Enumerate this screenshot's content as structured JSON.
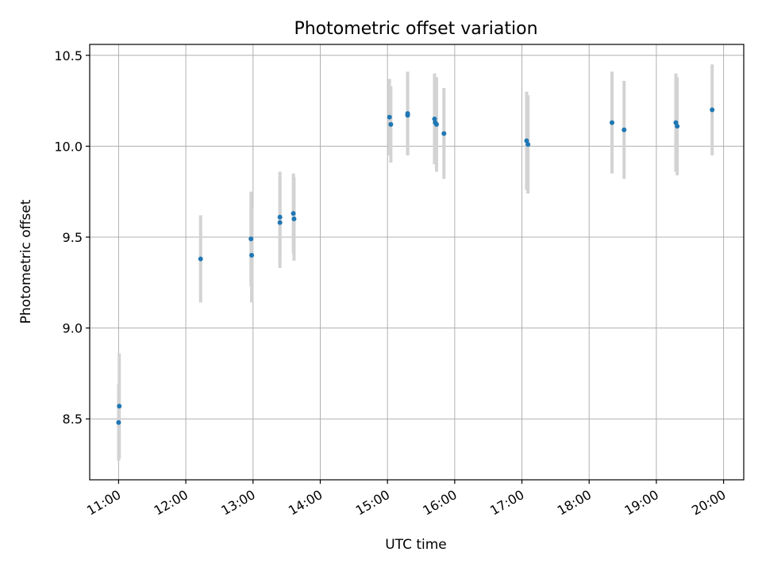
{
  "chart_data": {
    "type": "scatter",
    "title": "Photometric offset variation",
    "xlabel": "UTC time",
    "ylabel": "Photometric offset",
    "x_unit": "hours UTC",
    "xlim": [
      10.57,
      20.3
    ],
    "ylim": [
      8.165,
      10.56
    ],
    "x_ticks": [
      11,
      12,
      13,
      14,
      15,
      16,
      17,
      18,
      19,
      20
    ],
    "x_tick_labels": [
      "11:00",
      "12:00",
      "13:00",
      "14:00",
      "15:00",
      "16:00",
      "17:00",
      "18:00",
      "19:00",
      "20:00"
    ],
    "y_ticks": [
      8.5,
      9.0,
      9.5,
      10.0,
      10.5
    ],
    "y_tick_labels": [
      "8.5",
      "9.0",
      "9.5",
      "10.0",
      "10.5"
    ],
    "grid": true,
    "colors": {
      "point": "#1f77b4",
      "errorbar": "#d3d3d3",
      "grid": "#b0b0b0"
    },
    "points": [
      {
        "x": 11.01,
        "y": 8.57,
        "err": 0.29
      },
      {
        "x": 11.0,
        "y": 8.48,
        "err": 0.21
      },
      {
        "x": 12.22,
        "y": 9.38,
        "err": 0.24
      },
      {
        "x": 12.97,
        "y": 9.49,
        "err": 0.26
      },
      {
        "x": 12.98,
        "y": 9.4,
        "err": 0.26
      },
      {
        "x": 13.4,
        "y": 9.61,
        "err": 0.25
      },
      {
        "x": 13.4,
        "y": 9.58,
        "err": 0.25
      },
      {
        "x": 13.6,
        "y": 9.63,
        "err": 0.22
      },
      {
        "x": 13.61,
        "y": 9.6,
        "err": 0.23
      },
      {
        "x": 15.03,
        "y": 10.16,
        "err": 0.21
      },
      {
        "x": 15.05,
        "y": 10.12,
        "err": 0.21
      },
      {
        "x": 15.3,
        "y": 10.18,
        "err": 0.23
      },
      {
        "x": 15.3,
        "y": 10.17,
        "err": 0.21
      },
      {
        "x": 15.7,
        "y": 10.15,
        "err": 0.25
      },
      {
        "x": 15.71,
        "y": 10.13,
        "err": 0.22
      },
      {
        "x": 15.73,
        "y": 10.12,
        "err": 0.26
      },
      {
        "x": 15.84,
        "y": 10.07,
        "err": 0.25
      },
      {
        "x": 17.07,
        "y": 10.03,
        "err": 0.27
      },
      {
        "x": 17.09,
        "y": 10.01,
        "err": 0.27
      },
      {
        "x": 18.34,
        "y": 10.13,
        "err": 0.28
      },
      {
        "x": 18.52,
        "y": 10.09,
        "err": 0.27
      },
      {
        "x": 19.29,
        "y": 10.13,
        "err": 0.27
      },
      {
        "x": 19.31,
        "y": 10.11,
        "err": 0.27
      },
      {
        "x": 19.83,
        "y": 10.2,
        "err": 0.25
      }
    ]
  }
}
